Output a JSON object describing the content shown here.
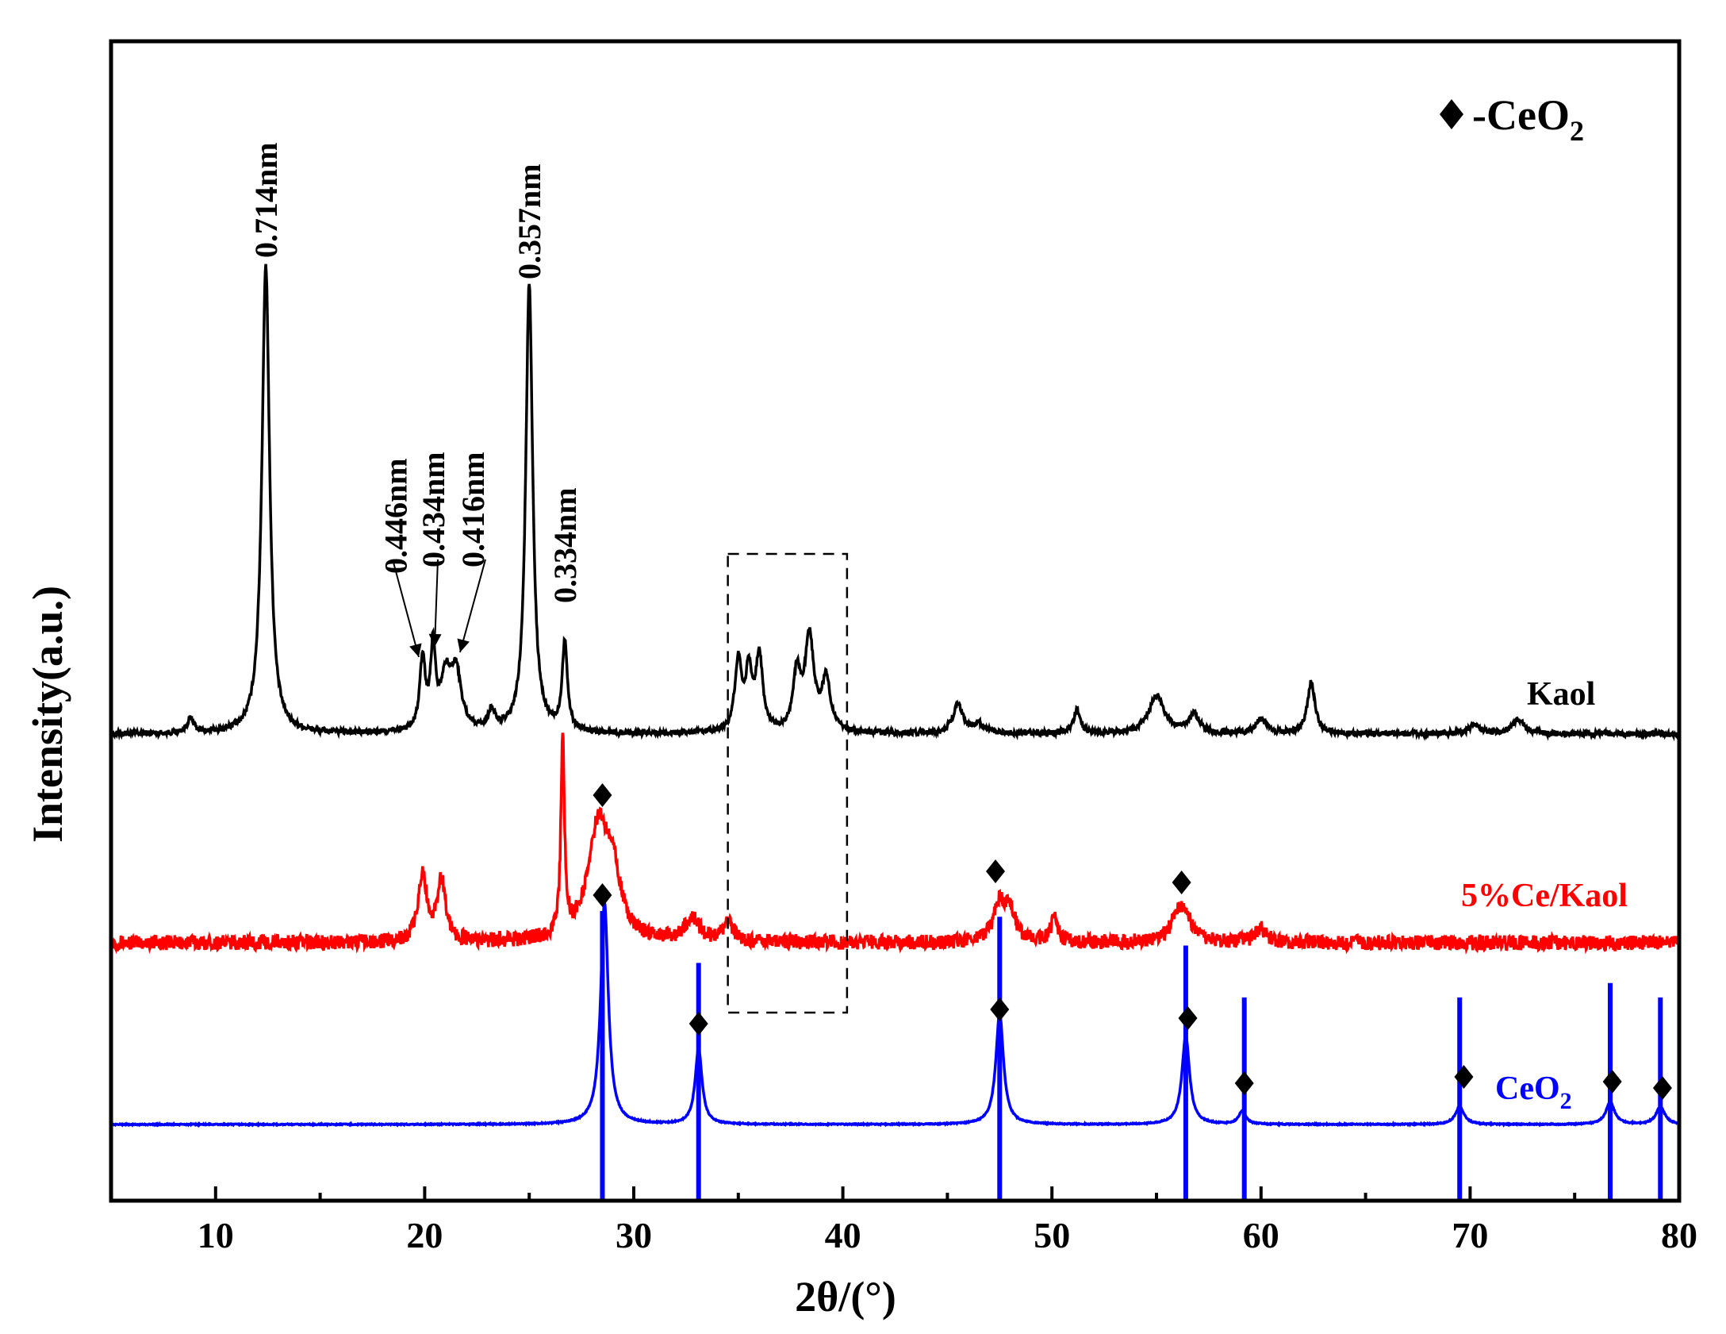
{
  "chart_data": {
    "type": "line",
    "xlabel": "2θ/(°)",
    "ylabel": "Intensity(a.u.)",
    "xlim": [
      5,
      80
    ],
    "xticks": [
      "10",
      "20",
      "30",
      "40",
      "50",
      "60",
      "70",
      "80"
    ],
    "legend": {
      "marker": "◆",
      "text": "-CeO",
      "subscript": "2",
      "placement": "top-right"
    },
    "colors": {
      "kaol": "#000000",
      "ce_kaol": "#ff0000",
      "ceo2": "#0000ff"
    },
    "series": [
      {
        "name": "Kaol",
        "color": "#000000",
        "baseline": 0,
        "noise": 1.2,
        "peaks": [
          [
            8.8,
            3,
            0.2
          ],
          [
            12.4,
            100,
            0.22
          ],
          [
            19.9,
            15,
            0.16
          ],
          [
            20.4,
            17,
            0.14
          ],
          [
            21.0,
            11,
            0.3
          ],
          [
            21.5,
            12,
            0.3
          ],
          [
            23.2,
            4,
            0.2
          ],
          [
            25.0,
            96,
            0.2
          ],
          [
            26.7,
            19,
            0.15
          ],
          [
            35.0,
            15,
            0.2
          ],
          [
            35.5,
            12,
            0.18
          ],
          [
            36.0,
            16,
            0.2
          ],
          [
            37.8,
            12,
            0.22
          ],
          [
            38.4,
            20,
            0.25
          ],
          [
            39.2,
            11,
            0.25
          ],
          [
            45.5,
            6,
            0.3
          ],
          [
            46.5,
            2,
            0.3
          ],
          [
            51.2,
            5,
            0.2
          ],
          [
            55.0,
            8,
            0.45
          ],
          [
            56.8,
            4,
            0.3
          ],
          [
            60.0,
            3,
            0.3
          ],
          [
            62.4,
            11,
            0.22
          ],
          [
            70.2,
            2,
            0.3
          ],
          [
            72.3,
            3,
            0.35
          ]
        ]
      },
      {
        "name": "5%Ce/Kaol",
        "color": "#ff0000",
        "baseline": 0,
        "noise": 3.2,
        "peaks": [
          [
            19.9,
            14,
            0.25
          ],
          [
            20.8,
            13,
            0.25
          ],
          [
            26.6,
            42,
            0.1
          ],
          [
            28.3,
            24,
            0.6
          ],
          [
            29.0,
            12,
            0.4
          ],
          [
            32.8,
            5,
            0.4
          ],
          [
            34.5,
            4,
            0.3
          ],
          [
            47.5,
            8,
            0.35
          ],
          [
            48.0,
            6,
            0.3
          ],
          [
            50.1,
            5,
            0.2
          ],
          [
            56.2,
            8,
            0.5
          ],
          [
            60.0,
            3,
            0.3
          ]
        ]
      },
      {
        "name": "CeO2",
        "color": "#0000ff",
        "baseline": 0,
        "noise": 0.25,
        "peaks": [
          [
            28.6,
            50,
            0.22
          ],
          [
            33.1,
            17,
            0.2
          ],
          [
            47.5,
            25,
            0.22
          ],
          [
            56.4,
            20,
            0.22
          ],
          [
            59.1,
            3,
            0.2
          ],
          [
            69.5,
            4,
            0.25
          ],
          [
            76.7,
            5,
            0.25
          ],
          [
            79.1,
            4,
            0.25
          ]
        ]
      }
    ],
    "reference_lines": [
      {
        "x": 28.5,
        "h": 1.0
      },
      {
        "x": 33.1,
        "h": 0.82
      },
      {
        "x": 47.5,
        "h": 0.98
      },
      {
        "x": 56.4,
        "h": 0.88
      },
      {
        "x": 59.2,
        "h": 0.7
      },
      {
        "x": 69.5,
        "h": 0.7
      },
      {
        "x": 76.7,
        "h": 0.75
      },
      {
        "x": 79.1,
        "h": 0.7
      }
    ],
    "peak_labels": [
      {
        "text": "0.714nm",
        "x": 12.4
      },
      {
        "text": "0.357nm",
        "x": 25.0
      },
      {
        "text": "0.446nm",
        "x": 18.6
      },
      {
        "text": "0.434nm",
        "x": 20.4
      },
      {
        "text": "0.416nm",
        "x": 22.3
      },
      {
        "text": "0.334nm",
        "x": 26.7
      }
    ],
    "markers": [
      {
        "series": "5%Ce/Kaol",
        "x": [
          28.5,
          28.5,
          47.3,
          56.2
        ]
      },
      {
        "series": "CeO2",
        "x": [
          33.1,
          47.5,
          56.5,
          59.2,
          69.7,
          76.8,
          79.2
        ]
      }
    ],
    "dashed_box": {
      "x": [
        34.5,
        40.2
      ]
    }
  },
  "series_labels": {
    "kaol": "Kaol",
    "ce_kaol": "5%Ce/Kaol",
    "ceo2_text": "CeO",
    "ceo2_sub": "2"
  }
}
